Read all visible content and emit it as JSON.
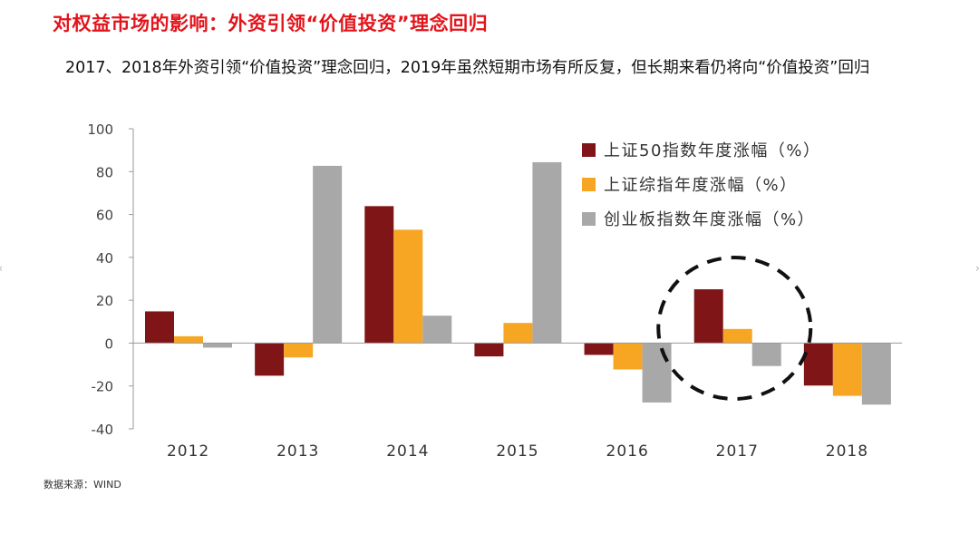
{
  "slide": {
    "title": "对权益市场的影响：外资引领“价值投资”理念回归",
    "subtitle": "2017、2018年外资引领“价值投资”理念回归，2019年虽然短期市场有所反复，但长期来看仍将向“价值投资”回归",
    "source": "数据来源：WIND",
    "nav_prev_glyph": "‹",
    "nav_next_glyph": "›"
  },
  "chart_data": {
    "type": "bar",
    "title": "",
    "xlabel": "",
    "ylabel": "",
    "categories": [
      "2012",
      "2013",
      "2014",
      "2015",
      "2016",
      "2017",
      "2018"
    ],
    "ylim": [
      -40,
      100
    ],
    "yticks": [
      100,
      80,
      60,
      40,
      20,
      0,
      -20,
      -40
    ],
    "grid": false,
    "legend_position": "top-right",
    "series": [
      {
        "name": "上证50指数年度涨幅（%）",
        "color": "#7f1517",
        "values": [
          14.8,
          -15.2,
          63.9,
          -6.2,
          -5.5,
          25.1,
          -19.8
        ]
      },
      {
        "name": "上证综指年度涨幅（%）",
        "color": "#f6a623",
        "values": [
          3.2,
          -6.7,
          52.9,
          9.4,
          -12.3,
          6.6,
          -24.6
        ]
      },
      {
        "name": "创业板指数年度涨幅（%）",
        "color": "#a8a8a8",
        "values": [
          -2.1,
          82.7,
          12.8,
          84.4,
          -27.7,
          -10.7,
          -28.7
        ]
      }
    ],
    "annotation": {
      "shape": "dashed-circle",
      "target_category": "2017"
    }
  }
}
